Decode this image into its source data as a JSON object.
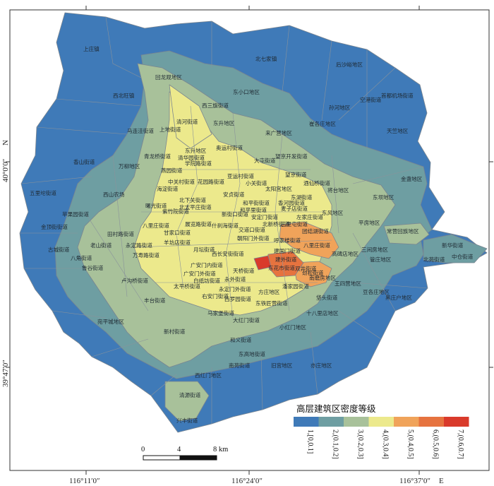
{
  "colors": {
    "c1": "#3f7ab8",
    "c2": "#6e9ea2",
    "c3": "#a8c19a",
    "c4": "#ece98c",
    "c5": "#f0a35a",
    "c6": "#e6733f",
    "c7": "#d93a2b",
    "boundary": "#7a8590",
    "frame": "#333333"
  },
  "axes": {
    "x_ticks": [
      "116°11′0″",
      "116°24′0″",
      "116°37′0″"
    ],
    "x_suffix": "E",
    "y_ticks": [
      "40°0′0″",
      "39°47′0″"
    ],
    "y_suffix": "N"
  },
  "legend": {
    "title": "高层建筑区密度等级",
    "classes": [
      {
        "label": "1,[0,0.1]",
        "color": "#3f7ab8"
      },
      {
        "label": "2,(0.1,0.2]",
        "color": "#6e9ea2"
      },
      {
        "label": "3,(0.2,0.3]",
        "color": "#a8c19a"
      },
      {
        "label": "4,(0.3,0.4]",
        "color": "#ece98c"
      },
      {
        "label": "5,(0.4,0.5]",
        "color": "#f0a35a"
      },
      {
        "label": "6,(0.5,0.6]",
        "color": "#e6733f"
      },
      {
        "label": "7,(0.6,0.7]",
        "color": "#d93a2b"
      }
    ]
  },
  "scale_bar": {
    "labels": [
      "0",
      "4",
      "8 km"
    ]
  },
  "districts": [
    {
      "name": "上庄镇",
      "cls": 1
    },
    {
      "name": "北七家镇",
      "cls": 1
    },
    {
      "name": "回龙观地区",
      "cls": 3
    },
    {
      "name": "东小口地区",
      "cls": 2
    },
    {
      "name": "西北旺镇",
      "cls": 1
    },
    {
      "name": "后沙峪地区",
      "cls": 1
    },
    {
      "name": "西三旗街道",
      "cls": 3
    },
    {
      "name": "清河街道",
      "cls": 4
    },
    {
      "name": "东升地区",
      "cls": 3
    },
    {
      "name": "孙河地区",
      "cls": 1
    },
    {
      "name": "空港街道",
      "cls": 1
    },
    {
      "name": "首都机场街道",
      "cls": 1
    },
    {
      "name": "马连洼街道",
      "cls": 3
    },
    {
      "name": "上地街道",
      "cls": 3
    },
    {
      "name": "崔各庄地区",
      "cls": 2
    },
    {
      "name": "天竺地区",
      "cls": 1
    },
    {
      "name": "来广营地区",
      "cls": 2
    },
    {
      "name": "奥运村街道",
      "cls": 3
    },
    {
      "name": "香山街道",
      "cls": 1
    },
    {
      "name": "万柳地区",
      "cls": 3
    },
    {
      "name": "东升地区",
      "cls": 4
    },
    {
      "name": "清华园街道",
      "cls": 3
    },
    {
      "name": "学院路街道",
      "cls": 4
    },
    {
      "name": "青龙桥街道",
      "cls": 3
    },
    {
      "name": "大屯街道",
      "cls": 3
    },
    {
      "name": "望京开发街道",
      "cls": 4
    },
    {
      "name": "金盏地区",
      "cls": 1
    },
    {
      "name": "燕园街道",
      "cls": 3
    },
    {
      "name": "亚运村街道",
      "cls": 3
    },
    {
      "name": "望京街道",
      "cls": 3
    },
    {
      "name": "酒仙桥街道",
      "cls": 3
    },
    {
      "name": "将台地区",
      "cls": 2
    },
    {
      "name": "东坝地区",
      "cls": 2
    },
    {
      "name": "中关村街道",
      "cls": 4
    },
    {
      "name": "花园路街道",
      "cls": 4
    },
    {
      "name": "小关街道",
      "cls": 3
    },
    {
      "name": "太阳宫地区",
      "cls": 3
    },
    {
      "name": "海淀街道",
      "cls": 4
    },
    {
      "name": "安贞街道",
      "cls": 4
    },
    {
      "name": "和平街街道",
      "cls": 4
    },
    {
      "name": "东湖街道",
      "cls": 3
    },
    {
      "name": "五里坨街道",
      "cls": 1
    },
    {
      "name": "西山农场",
      "cls": 1
    },
    {
      "name": "曙光街道",
      "cls": 3
    },
    {
      "name": "北下关街道",
      "cls": 4
    },
    {
      "name": "北太平庄街道",
      "cls": 4
    },
    {
      "name": "和平里街道",
      "cls": 4
    },
    {
      "name": "香河园街道",
      "cls": 3
    },
    {
      "name": "麦子店街道",
      "cls": 3
    },
    {
      "name": "苹果园街道",
      "cls": 2
    },
    {
      "name": "紫竹院街道",
      "cls": 4
    },
    {
      "name": "新街口街道",
      "cls": 4
    },
    {
      "name": "安定门街道",
      "cls": 4
    },
    {
      "name": "左家庄街道",
      "cls": 3
    },
    {
      "name": "东风地区",
      "cls": 2
    },
    {
      "name": "平房地区",
      "cls": 2
    },
    {
      "name": "金顶街街道",
      "cls": 2
    },
    {
      "name": "八里庄街道",
      "cls": 4
    },
    {
      "name": "甘家口街道",
      "cls": 4
    },
    {
      "name": "展览路街道",
      "cls": 4
    },
    {
      "name": "什刹海街道",
      "cls": 4
    },
    {
      "name": "交道口街道",
      "cls": 4
    },
    {
      "name": "北新桥街道",
      "cls": 4
    },
    {
      "name": "三里屯街道",
      "cls": 5
    },
    {
      "name": "团结湖街道",
      "cls": 5
    },
    {
      "name": "常营回族地区",
      "cls": 4
    },
    {
      "name": "田村路街道",
      "cls": 3
    },
    {
      "name": "羊坊店街道",
      "cls": 4
    },
    {
      "name": "月坛街道",
      "cls": 4
    },
    {
      "name": "西长安街街道",
      "cls": 4
    },
    {
      "name": "朝阳门外街道",
      "cls": 4
    },
    {
      "name": "呼家楼街道",
      "cls": 5
    },
    {
      "name": "八里庄街道",
      "cls": 4
    },
    {
      "name": "三间房地区",
      "cls": 2
    },
    {
      "name": "新华街道",
      "cls": 2
    },
    {
      "name": "古城街道",
      "cls": 2
    },
    {
      "name": "八角街道",
      "cls": 3
    },
    {
      "name": "老山街道",
      "cls": 3
    },
    {
      "name": "永定路街道",
      "cls": 4
    },
    {
      "name": "万寿路街道",
      "cls": 4
    },
    {
      "name": "广安门内街道",
      "cls": 4
    },
    {
      "name": "建国门街道",
      "cls": 4
    },
    {
      "name": "建外街道",
      "cls": 6
    },
    {
      "name": "高碑店地区",
      "cls": 3
    },
    {
      "name": "管庄地区",
      "cls": 3
    },
    {
      "name": "北苑街道",
      "cls": 3
    },
    {
      "name": "中仓街道",
      "cls": 3
    },
    {
      "name": "鲁谷街道",
      "cls": 3
    },
    {
      "name": "广安门外街道",
      "cls": 4
    },
    {
      "name": "天桥街道",
      "cls": 4
    },
    {
      "name": "东花市街道",
      "cls": 4
    },
    {
      "name": "双井街道",
      "cls": 4
    },
    {
      "name": "劲松街道",
      "cls": 5
    },
    {
      "name": "卢沟桥街道",
      "cls": 3
    },
    {
      "name": "白纸坊街道",
      "cls": 4
    },
    {
      "name": "永外街道",
      "cls": 4
    },
    {
      "name": "潘家园街道",
      "cls": 4
    },
    {
      "name": "南磨房地区",
      "cls": 4
    },
    {
      "name": "王四营地区",
      "cls": 3
    },
    {
      "name": "太平桥街道",
      "cls": 4
    },
    {
      "name": "右安门街道",
      "cls": 4
    },
    {
      "name": "永定门外街道",
      "cls": 4
    },
    {
      "name": "方庄地区",
      "cls": 4
    },
    {
      "name": "垡头街道",
      "cls": 3
    },
    {
      "name": "豆各庄地区",
      "cls": 2
    },
    {
      "name": "黑庄户地区",
      "cls": 2
    },
    {
      "name": "丰台街道",
      "cls": 4
    },
    {
      "name": "西罗园街道",
      "cls": 3
    },
    {
      "name": "东铁匠营街道",
      "cls": 3
    },
    {
      "name": "十八里店地区",
      "cls": 3
    },
    {
      "name": "宛平城地区",
      "cls": 2
    },
    {
      "name": "马家堡街道",
      "cls": 3
    },
    {
      "name": "大红门街道",
      "cls": 3
    },
    {
      "name": "小红门地区",
      "cls": 3
    },
    {
      "name": "新村街道",
      "cls": 3
    },
    {
      "name": "和义街道",
      "cls": 3
    },
    {
      "name": "东高地街道",
      "cls": 3
    },
    {
      "name": "南苑街道",
      "cls": 2
    },
    {
      "name": "旧宫地区",
      "cls": 2
    },
    {
      "name": "亦庄地区",
      "cls": 2
    },
    {
      "name": "西红门地区",
      "cls": 3
    },
    {
      "name": "清源街道",
      "cls": 3
    },
    {
      "name": "兴丰街道",
      "cls": 2
    },
    {
      "name": "建国门外街道",
      "cls": 7
    },
    {
      "name": "朝外街道",
      "cls": 6
    }
  ]
}
